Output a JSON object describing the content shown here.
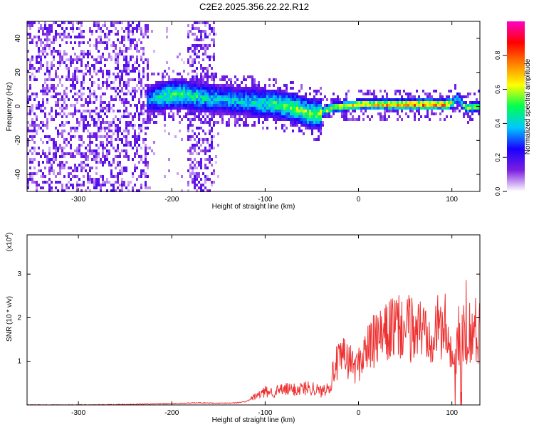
{
  "title": "C2E2.2025.356.22.22.R12",
  "chart_data": [
    {
      "type": "heatmap",
      "title": "C2E2.2025.356.22.22.R12",
      "xlabel": "Height of straight line (km)",
      "ylabel": "Frequency (Hz)",
      "xlim": [
        -355,
        130
      ],
      "ylim": [
        -50,
        50
      ],
      "xticks": [
        -300,
        -200,
        -100,
        0,
        100
      ],
      "yticks": [
        -40,
        -20,
        0,
        20,
        40
      ],
      "grid": false,
      "colorbar": {
        "label": "Normalized spectral amplitude",
        "range": [
          0.0,
          1.0
        ],
        "ticks": [
          "0.0",
          "0.2",
          "0.4",
          "0.6",
          "0.8"
        ],
        "colormap": [
          "#ffffff",
          "#7b1fe0",
          "#1a00ff",
          "#00c8ff",
          "#00ff50",
          "#ffff00",
          "#ff8000",
          "#ff0000",
          "#ff00c8"
        ]
      },
      "ridge": {
        "x": [
          -225,
          -210,
          -190,
          -170,
          -150,
          -130,
          -110,
          -90,
          -70,
          -55,
          -45,
          -38,
          -30,
          -15,
          0,
          20,
          40,
          60,
          80,
          95,
          100,
          105,
          110,
          115,
          130
        ],
        "y": [
          5,
          7,
          8,
          6,
          5,
          4,
          3,
          2,
          0,
          -3,
          -4,
          -2,
          0,
          1,
          2,
          2,
          2,
          2,
          2,
          2,
          3,
          6,
          2,
          0,
          1
        ],
        "amplitude": [
          0.35,
          0.5,
          0.5,
          0.45,
          0.4,
          0.4,
          0.45,
          0.5,
          0.55,
          0.55,
          0.55,
          0.6,
          0.65,
          0.7,
          0.7,
          0.75,
          0.8,
          0.85,
          0.85,
          0.8,
          0.6,
          0.45,
          0.55,
          0.6,
          0.6
        ]
      }
    },
    {
      "type": "line",
      "xlabel": "Height of straight line (km)",
      "ylabel": "SNR (10 * v/v)",
      "y_multiplier": "(x10",
      "y_multiplier_exp": "4",
      "y_multiplier_close": ")",
      "xlim": [
        -355,
        130
      ],
      "ylim": [
        0,
        3.9
      ],
      "xticks": [
        -300,
        -200,
        -100,
        0,
        100
      ],
      "yticks": [
        1,
        2,
        3
      ],
      "grid": false,
      "line_color": "#ee3030",
      "series": [
        {
          "x": [
            -355,
            -300,
            -250,
            -200,
            -170,
            -150,
            -130,
            -120,
            -110,
            -100,
            -90,
            -80,
            -70,
            -60,
            -50,
            -40,
            -30,
            -25,
            -20,
            -15,
            -10,
            -5,
            0,
            5,
            10,
            20,
            30,
            35,
            40,
            50,
            60,
            70,
            80,
            90,
            95,
            100,
            103,
            106,
            110,
            113,
            115,
            120,
            130
          ],
          "y": [
            0.0,
            0.0,
            0.01,
            0.03,
            0.05,
            0.04,
            0.05,
            0.08,
            0.2,
            0.3,
            0.3,
            0.35,
            0.35,
            0.38,
            0.4,
            0.3,
            0.5,
            0.9,
            1.0,
            1.1,
            1.0,
            0.9,
            0.9,
            1.2,
            1.3,
            1.5,
            1.6,
            1.8,
            1.75,
            1.75,
            1.75,
            1.75,
            1.75,
            1.75,
            1.8,
            1.2,
            0.5,
            1.5,
            0.3,
            2.0,
            1.72,
            1.72,
            1.7
          ]
        }
      ]
    }
  ]
}
